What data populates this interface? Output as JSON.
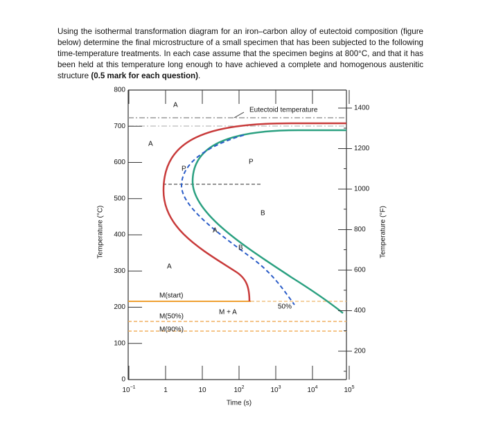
{
  "question": {
    "text": "Using the isothermal transformation diagram for an iron–carbon alloy of eutectoid composition (figure below) determine the final microstructure of a small specimen that has been subjected to the following time-temperature treatments. In each case assume that the specimen begins at 800°C, and that it has been held at this temperature long enough to have achieved a complete and homogenous austenitic structure",
    "bold": "(0.5 mark for each question)",
    "tail": "."
  },
  "diagram": {
    "y_label": "Temperature (°C)",
    "y2_label": "Temperature (°F)",
    "x_label": "Time (s)",
    "y_ticks": [
      "800",
      "700",
      "600",
      "500",
      "400",
      "300",
      "200",
      "100",
      "0"
    ],
    "y2_ticks": [
      "1400",
      "1200",
      "1000",
      "800",
      "600",
      "400",
      "200"
    ],
    "x_ticks": [
      {
        "base": "10",
        "sup": "−1"
      },
      {
        "base": "1"
      },
      {
        "base": "10"
      },
      {
        "base": "10",
        "sup": "2"
      },
      {
        "base": "10",
        "sup": "3"
      },
      {
        "base": "10",
        "sup": "4"
      },
      {
        "base": "10",
        "sup": "5"
      }
    ],
    "labels": [
      "Eutectoid temperature",
      "A",
      "A",
      "A",
      "P",
      "P",
      "B",
      "A",
      "B",
      "M(start)",
      "M + A",
      "50%",
      "M(50%)",
      "M(90%)"
    ]
  }
}
